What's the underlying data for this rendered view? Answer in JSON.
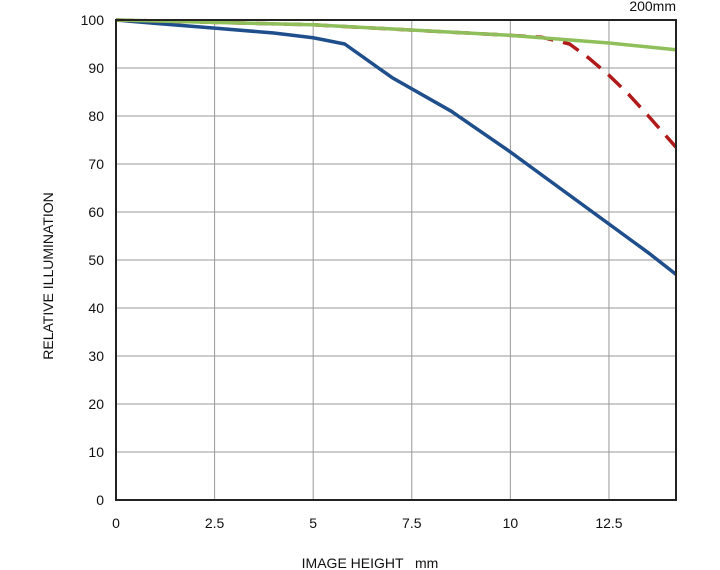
{
  "chart_data": {
    "type": "line",
    "title": "200mm",
    "xlabel": "IMAGE HEIGHT   mm",
    "ylabel": "RELATIVE ILLUMINATION",
    "xlim": [
      0,
      14.2
    ],
    "ylim": [
      0,
      100
    ],
    "xticks": [
      0,
      2.5,
      5,
      7.5,
      10,
      12.5
    ],
    "xtick_labels": [
      "0",
      "2.5",
      "5",
      "7.5",
      "10",
      "12.5"
    ],
    "yticks": [
      0,
      10,
      20,
      30,
      40,
      50,
      60,
      70,
      80,
      90,
      100
    ],
    "ytick_labels": [
      "0",
      "10",
      "20",
      "30",
      "40",
      "50",
      "60",
      "70",
      "80",
      "90",
      "100"
    ],
    "grid": true,
    "series": [
      {
        "name": "series-blue",
        "color": "#1f4e8c",
        "dash": false,
        "x": [
          0,
          1,
          2.5,
          4,
          5,
          5.8,
          7,
          8.5,
          10,
          11.25,
          12.5,
          13.5,
          14.2
        ],
        "y": [
          100,
          99.3,
          98.3,
          97.3,
          96.3,
          95,
          88,
          81,
          72.5,
          65,
          57.5,
          51.5,
          47
        ]
      },
      {
        "name": "series-red-dashed",
        "color": "#b01a1a",
        "dash": true,
        "x": [
          0,
          5,
          10,
          10.8,
          11.5,
          12,
          12.5,
          13,
          13.5,
          14.2
        ],
        "y": [
          100,
          99,
          96.8,
          96.4,
          95,
          92,
          88.5,
          84.5,
          80,
          73.5
        ]
      },
      {
        "name": "series-green",
        "color": "#8fbf5a",
        "dash": false,
        "x": [
          0,
          5,
          10,
          12.5,
          14.2
        ],
        "y": [
          100,
          99,
          96.8,
          95.2,
          93.8
        ]
      }
    ]
  }
}
